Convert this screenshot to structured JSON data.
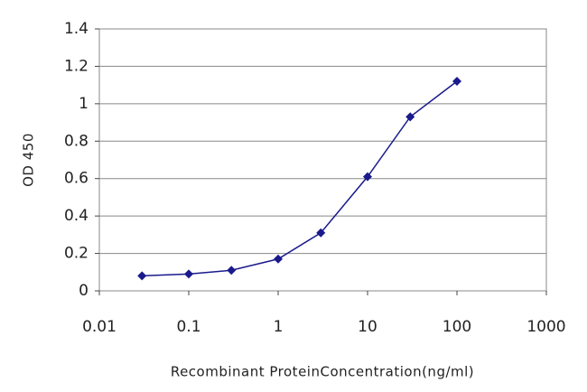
{
  "chart_data": {
    "type": "line",
    "x": [
      0.03,
      0.1,
      0.3,
      1,
      3,
      10,
      30,
      100
    ],
    "values": [
      0.08,
      0.09,
      0.11,
      0.17,
      0.31,
      0.61,
      0.93,
      1.12
    ],
    "color": "#1a1a8c",
    "xscale": "log",
    "xlim": [
      0.01,
      1000
    ],
    "xticks": [
      0.01,
      0.1,
      1,
      10,
      100,
      1000
    ],
    "ylim": [
      0,
      1.4
    ],
    "yticks": [
      0,
      0.2,
      0.4,
      0.6,
      0.8,
      1,
      1.2,
      1.4
    ],
    "grid": true,
    "xlabel": "Recombinant ProteinConcentration(ng/ml)",
    "ylabel": "OD 450"
  }
}
